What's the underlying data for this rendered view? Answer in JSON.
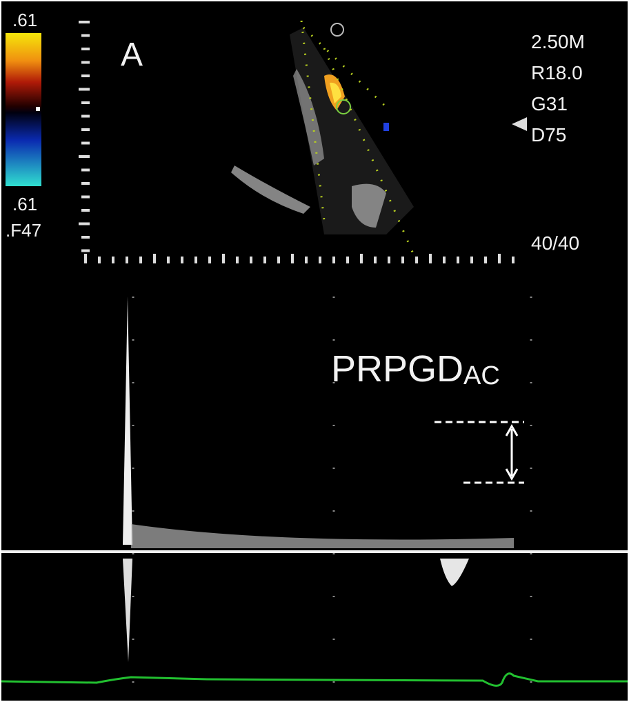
{
  "panel_label": "A",
  "color_scale": {
    "top": ".61",
    "bottom": ".61",
    "filter": ".F47"
  },
  "settings": [
    "2.50M",
    "R18.0",
    "G31",
    "D75"
  ],
  "frame_rate": "40/40",
  "annotation": {
    "main": "PRPGD",
    "subscript": "AC"
  }
}
